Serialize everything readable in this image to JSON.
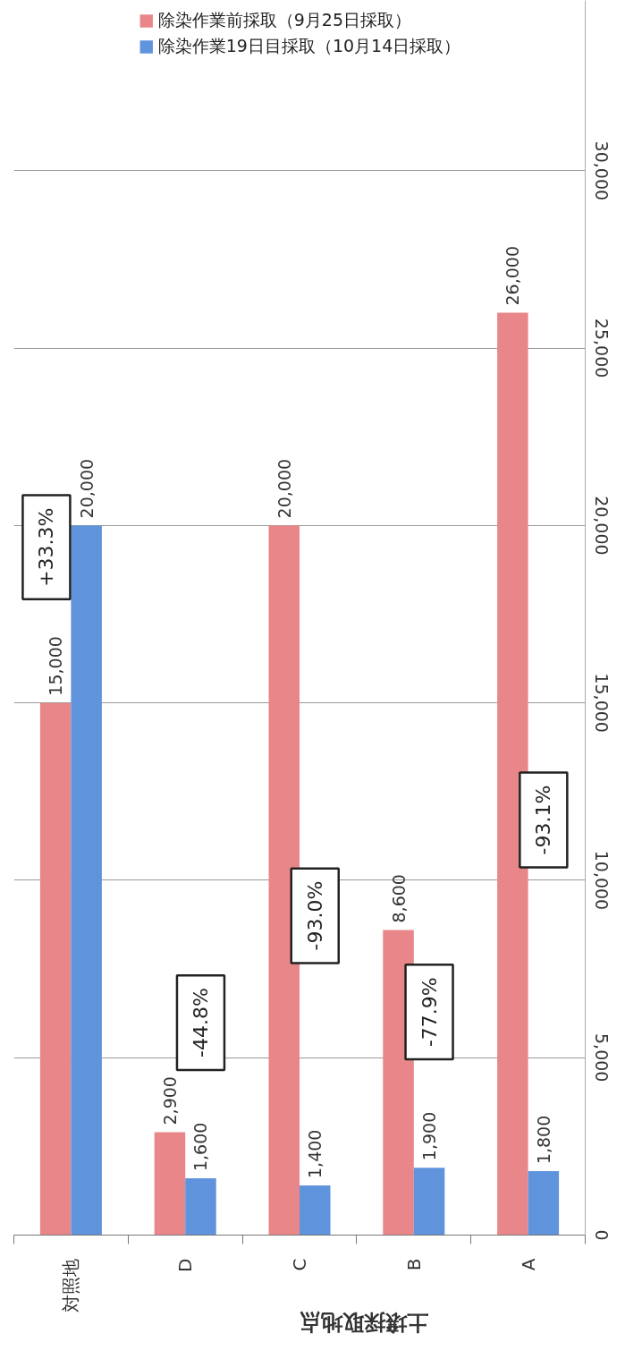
{
  "chart_data": {
    "type": "bar",
    "xlabel": "土壌採取地点",
    "categories": [
      "対照地",
      "D",
      "C",
      "B",
      "A"
    ],
    "series": [
      {
        "name": "除染作業前採取（9月25日採取）",
        "color": "#e8868a",
        "values": [
          15000,
          2900,
          20000,
          8600,
          26000
        ],
        "value_labels": [
          "15,000",
          "2,900",
          "20,000",
          "8,600",
          "26,000"
        ]
      },
      {
        "name": "除染作業19日目採取（10月14日採取）",
        "color": "#5f93dc",
        "values": [
          20000,
          1600,
          1400,
          1900,
          1800
        ],
        "value_labels": [
          "20,000",
          "1,600",
          "1,400",
          "1,900",
          "1,800"
        ]
      }
    ],
    "ylim": [
      0,
      34800
    ],
    "yticks": [
      {
        "value": 0,
        "label": "0"
      },
      {
        "value": 5000,
        "label": "5,000"
      },
      {
        "value": 10000,
        "label": "10,000"
      },
      {
        "value": 15000,
        "label": "15,000"
      },
      {
        "value": 20000,
        "label": "20,000"
      },
      {
        "value": 25000,
        "label": "25,000"
      },
      {
        "value": 30000,
        "label": "30,000"
      }
    ],
    "grid": "y",
    "legend": "top",
    "annotations": [
      "+33.3%",
      "-44.8%",
      "-93.0%",
      "-77.9%",
      "-93.1%"
    ]
  }
}
